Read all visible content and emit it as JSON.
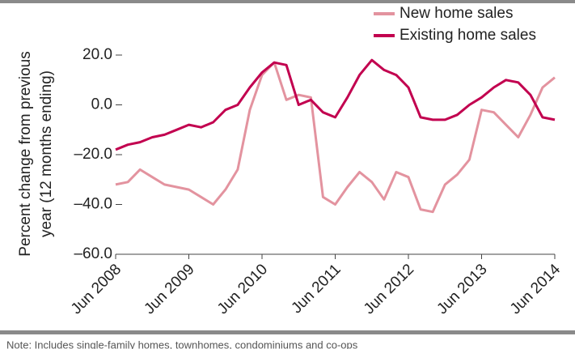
{
  "chart_data": {
    "type": "line",
    "y_label": [
      "Percent change from previous",
      "year (12 months ending)"
    ],
    "note": "Note: Includes single-family homes, townhomes, condominiums and co-ops",
    "x": [
      2008.5,
      2008.667,
      2008.833,
      2009.0,
      2009.167,
      2009.333,
      2009.5,
      2009.667,
      2009.833,
      2010.0,
      2010.167,
      2010.333,
      2010.5,
      2010.667,
      2010.833,
      2011.0,
      2011.167,
      2011.333,
      2011.5,
      2011.667,
      2011.833,
      2012.0,
      2012.167,
      2012.333,
      2012.5,
      2012.667,
      2012.833,
      2013.0,
      2013.167,
      2013.333,
      2013.5,
      2013.667,
      2013.833,
      2014.0,
      2014.167,
      2014.333,
      2014.5
    ],
    "series": [
      {
        "name": "New home sales",
        "color": "#e3939f",
        "values": [
          -32,
          -31,
          -26,
          -29,
          -32,
          -33,
          -34,
          -37,
          -40,
          -34,
          -26,
          -2,
          12,
          17,
          2,
          4,
          3,
          -37,
          -40,
          -33,
          -27,
          -31,
          -38,
          -27,
          -29,
          -42,
          -43,
          -32,
          -28,
          -22,
          -2,
          -3,
          -8,
          -13,
          -4,
          7,
          11
        ]
      },
      {
        "name": "Existing home sales",
        "color": "#c2004f",
        "values": [
          -18,
          -16,
          -15,
          -13,
          -12,
          -10,
          -8,
          -9,
          -7,
          -2,
          0,
          7,
          13,
          17,
          16,
          0,
          2,
          -3,
          -5,
          3,
          12,
          18,
          14,
          12,
          7,
          -5,
          -6,
          -6,
          -4,
          0,
          3,
          7,
          10,
          9,
          4,
          -5,
          -6
        ]
      }
    ],
    "xlim": [
      2008.5,
      2014.5
    ],
    "xticks": [
      {
        "value": 2008.5,
        "label": "Jun 2008"
      },
      {
        "value": 2009.5,
        "label": "Jun 2009"
      },
      {
        "value": 2010.5,
        "label": "Jun 2010"
      },
      {
        "value": 2011.5,
        "label": "Jun 2011"
      },
      {
        "value": 2012.5,
        "label": "Jun 2012"
      },
      {
        "value": 2013.5,
        "label": "Jun 2013"
      },
      {
        "value": 2014.5,
        "label": "Jun 2014"
      }
    ],
    "ylim": [
      -60,
      20
    ],
    "yticks": [
      {
        "value": 20,
        "label": "20.0"
      },
      {
        "value": 0,
        "label": "0.0"
      },
      {
        "value": -20,
        "label": "–20.0"
      },
      {
        "value": -40,
        "label": "–40.0"
      },
      {
        "value": -60,
        "label": "–60.0"
      }
    ],
    "legend": "upper right"
  }
}
